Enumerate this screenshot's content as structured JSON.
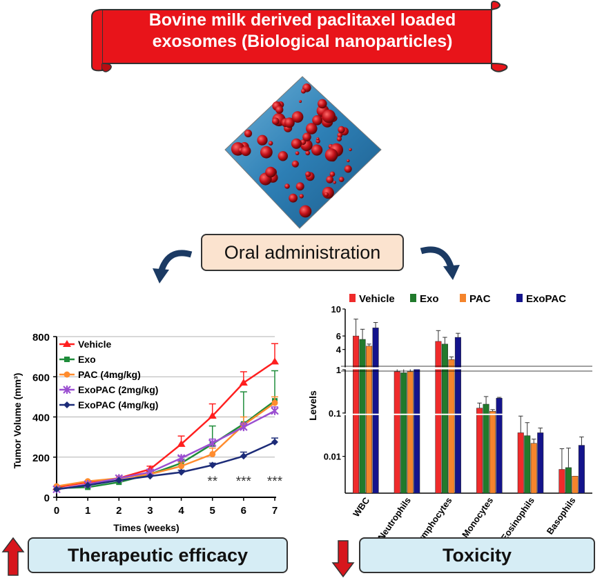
{
  "banner": {
    "line1": "Bovine milk derived paclitaxel loaded",
    "line2": "exosomes (Biological nanoparticles)"
  },
  "oral_label": "Oral administration",
  "therapeutic_label": "Therapeutic efficacy",
  "toxicity_label": "Toxicity",
  "colors": {
    "vehicle": "#ff1f1f",
    "exo": "#1e8c3a",
    "pac": "#ff8c2e",
    "exopac2": "#9b4fd1",
    "exopac4": "#1c2b78",
    "banner": "#e8141a",
    "tox_vehicle": "#ef2b2b",
    "tox_exo": "#217a2c",
    "tox_pac": "#f4842c",
    "tox_exopac": "#14148c"
  },
  "chart_data": [
    {
      "type": "line",
      "xlabel": "Times (weeks)",
      "ylabel": "Tumor Volume (mm³)",
      "x": [
        0,
        1,
        2,
        3,
        4,
        5,
        6,
        7
      ],
      "xlim": [
        0,
        7
      ],
      "ylim": [
        0,
        800
      ],
      "yticks": [
        0,
        200,
        400,
        600,
        800
      ],
      "series": [
        {
          "name": "Vehicle",
          "color": "#ff1f1f",
          "marker": "triangle",
          "values": [
            50,
            75,
            95,
            140,
            265,
            405,
            570,
            675
          ],
          "err": [
            0,
            0,
            0,
            15,
            40,
            60,
            55,
            90
          ]
        },
        {
          "name": "Exo",
          "color": "#1e8c3a",
          "marker": "square",
          "values": [
            45,
            50,
            75,
            115,
            170,
            265,
            365,
            480
          ],
          "err": [
            0,
            0,
            0,
            10,
            20,
            90,
            160,
            150
          ]
        },
        {
          "name": "PAC (4mg/kg)",
          "color": "#ff8c2e",
          "marker": "circle",
          "values": [
            55,
            80,
            95,
            115,
            155,
            215,
            360,
            470
          ],
          "err": [
            0,
            0,
            0,
            10,
            20,
            30,
            40,
            30
          ]
        },
        {
          "name": "ExoPAC (2mg/kg)",
          "color": "#9b4fd1",
          "marker": "star",
          "values": [
            40,
            65,
            95,
            125,
            195,
            270,
            350,
            430
          ],
          "err": [
            0,
            0,
            0,
            0,
            10,
            20,
            20,
            20
          ]
        },
        {
          "name": "ExoPAC (4mg/kg)",
          "color": "#1c2b78",
          "marker": "diamond",
          "values": [
            40,
            60,
            85,
            105,
            125,
            160,
            205,
            275
          ],
          "err": [
            0,
            0,
            0,
            0,
            10,
            10,
            20,
            20
          ]
        }
      ],
      "annotations": [
        {
          "x": 5,
          "text": "**"
        },
        {
          "x": 6,
          "text": "***"
        },
        {
          "x": 7,
          "text": "***"
        }
      ]
    },
    {
      "type": "bar",
      "ylabel": "Levels",
      "yscale": "broken-log",
      "ytick_labels": [
        "10",
        "6",
        "4",
        "1",
        "0.1",
        "0.01"
      ],
      "categories": [
        "WBC",
        "Neutrophils",
        "Lymphocytes",
        "Monocytes",
        "Eosinophils",
        "Basophils"
      ],
      "series": [
        {
          "name": "Vehicle",
          "color": "#ef2b2b",
          "values": [
            6.0,
            0.9,
            5.2,
            0.13,
            0.035,
            0.005
          ],
          "err": [
            2.5,
            0.3,
            1.6,
            0.04,
            0.05,
            0.01
          ]
        },
        {
          "name": "Exo",
          "color": "#217a2c",
          "values": [
            5.5,
            0.85,
            4.8,
            0.16,
            0.03,
            0.0055
          ],
          "err": [
            1.5,
            0.3,
            1.0,
            0.08,
            0.03,
            0.01
          ]
        },
        {
          "name": "PAC",
          "color": "#f4842c",
          "values": [
            4.5,
            0.9,
            2.5,
            0.11,
            0.02,
            0.0035
          ],
          "err": [
            0.3,
            0.2,
            0.4,
            0.01,
            0.005,
            0.0
          ]
        },
        {
          "name": "ExoPAC",
          "color": "#14148c",
          "values": [
            7.2,
            1.05,
            5.8,
            0.22,
            0.035,
            0.018
          ],
          "err": [
            0.8,
            0.1,
            0.6,
            0.01,
            0.01,
            0.01
          ]
        }
      ]
    }
  ]
}
